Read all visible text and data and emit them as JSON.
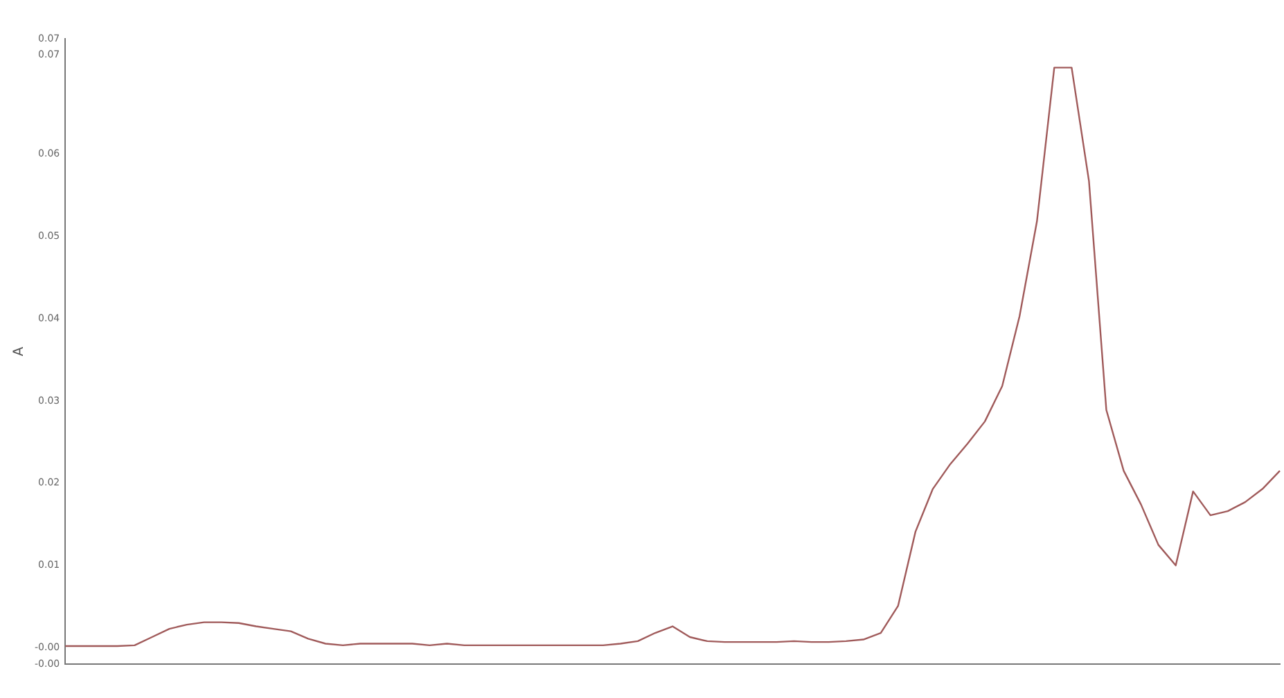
{
  "chart_data": {
    "type": "line",
    "ylabel": "A",
    "categories": [
      null,
      null,
      null,
      null,
      null,
      null,
      null,
      null,
      null,
      null,
      null,
      null,
      null,
      null,
      null,
      null,
      null,
      null,
      null,
      null,
      null,
      null,
      null,
      null,
      null,
      null,
      null,
      null,
      null,
      null,
      null,
      null,
      null,
      null,
      null,
      null,
      null,
      null,
      null,
      null,
      null,
      null,
      null,
      null,
      null,
      null,
      null,
      null,
      null,
      null,
      null,
      null,
      null,
      null,
      null,
      null,
      null,
      null,
      null,
      null,
      null,
      null,
      null,
      null,
      null,
      null,
      null,
      null,
      null,
      null,
      null
    ],
    "series": [
      {
        "color": "#a05a5a",
        "values": [
          0.0002,
          0.0002,
          0.0002,
          0.0002,
          0.0003,
          0.0013,
          0.0023,
          0.0028,
          0.0031,
          0.0031,
          0.003,
          0.0026,
          0.0023,
          0.002,
          0.0011,
          0.0005,
          0.0003,
          0.0005,
          0.0005,
          0.0005,
          0.0005,
          0.0003,
          0.0005,
          0.0003,
          0.0003,
          0.0003,
          0.0003,
          0.0003,
          0.0003,
          0.0003,
          0.0003,
          0.0003,
          0.0005,
          0.0008,
          0.0018,
          0.0026,
          0.0013,
          0.0008,
          0.0007,
          0.0007,
          0.0007,
          0.0007,
          0.0008,
          0.0007,
          0.0007,
          0.0008,
          0.001,
          0.0018,
          0.0051,
          0.0141,
          0.0193,
          0.0223,
          0.0248,
          0.0275,
          0.0318,
          0.0403,
          0.0518,
          0.0705,
          0.0705,
          0.0567,
          0.0289,
          0.0215,
          0.0174,
          0.0125,
          0.01,
          0.019,
          0.0161,
          0.0166,
          0.0177,
          0.0193,
          0.0215
        ]
      }
    ],
    "ylim": [
      -0.002,
      0.074
    ],
    "yticks": [
      {
        "value": -0.002,
        "label": "-0.00"
      },
      {
        "value": 0,
        "label": "-0.00"
      },
      0.01,
      0.02,
      0.03,
      0.04,
      0.05,
      0.06,
      {
        "value": 0.072,
        "label": "0.07"
      },
      {
        "value": 0.074,
        "label": "0.07"
      }
    ],
    "grid": false,
    "legend": false,
    "marker": "none",
    "line_style": "solid"
  }
}
